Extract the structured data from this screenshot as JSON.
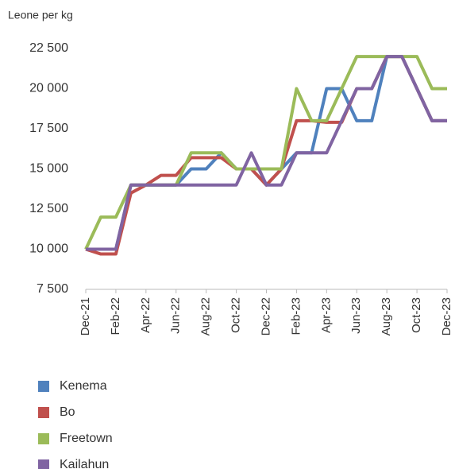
{
  "chart_data": {
    "type": "line",
    "y_label": "Leone per kg",
    "categories": [
      "Dec-21",
      null,
      "Feb-22",
      null,
      "Apr-22",
      null,
      "Jun-22",
      null,
      "Aug-22",
      null,
      "Oct-22",
      null,
      "Dec-22",
      null,
      "Feb-23",
      null,
      "Apr-23",
      null,
      "Jun-23",
      null,
      "Aug-23",
      null,
      "Oct-23",
      null,
      "Dec-23"
    ],
    "series": [
      {
        "name": "Kenema",
        "color": "#4f81bd",
        "values": [
          10000,
          10000,
          10000,
          14000,
          14000,
          14000,
          14000,
          15000,
          15000,
          16000,
          15000,
          15000,
          14000,
          15000,
          16000,
          16000,
          20000,
          20000,
          18000,
          18000,
          22000,
          22000,
          20000,
          18000,
          18000
        ]
      },
      {
        "name": "Bo",
        "color": "#c0504d",
        "values": [
          10000,
          9700,
          9700,
          13500,
          14000,
          14600,
          14600,
          15700,
          15700,
          15700,
          15000,
          15000,
          14000,
          15000,
          18000,
          18000,
          17900,
          17900,
          20000,
          20000,
          22000,
          22000,
          20000,
          18000,
          18000
        ]
      },
      {
        "name": "Freetown",
        "color": "#9bbb59",
        "values": [
          10000,
          12000,
          12000,
          14000,
          14000,
          14000,
          14000,
          16000,
          16000,
          16000,
          15000,
          15000,
          15000,
          15000,
          20000,
          18000,
          18000,
          20000,
          22000,
          22000,
          22000,
          22000,
          22000,
          20000,
          20000
        ]
      },
      {
        "name": "Kailahun",
        "color": "#8064a2",
        "values": [
          10000,
          10000,
          10000,
          14000,
          14000,
          14000,
          14000,
          14000,
          14000,
          14000,
          14000,
          16000,
          14000,
          14000,
          16000,
          16000,
          16000,
          18000,
          20000,
          20000,
          22000,
          22000,
          20000,
          18000,
          18000
        ]
      }
    ],
    "ylim": [
      7500,
      22500
    ],
    "yticks": [
      {
        "value": 7500,
        "label": "7 500"
      },
      {
        "value": 10000,
        "label": "10 000"
      },
      {
        "value": 12500,
        "label": "12 500"
      },
      {
        "value": 15000,
        "label": "15 000"
      },
      {
        "value": 17500,
        "label": "17 500"
      },
      {
        "value": 20000,
        "label": "20 000"
      },
      {
        "value": 22500,
        "label": "22 500"
      }
    ],
    "grid": false,
    "legend": "bottom"
  }
}
